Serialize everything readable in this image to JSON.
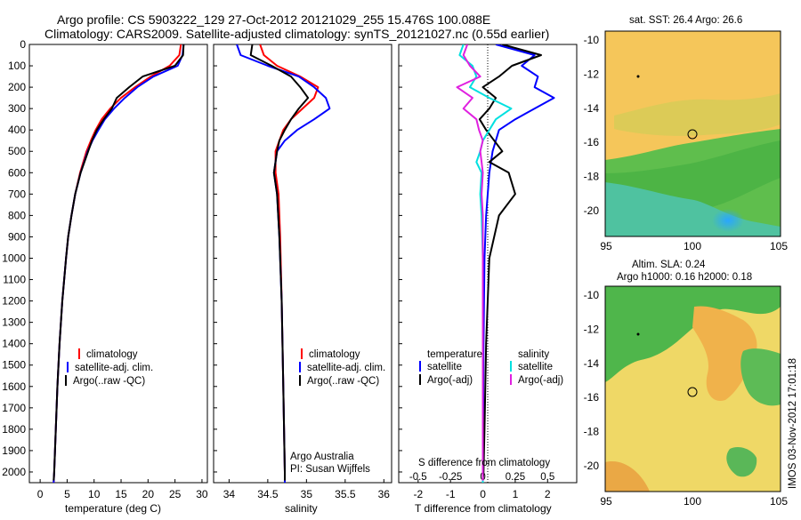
{
  "header": {
    "line1": "Argo profile: CS 5903222_129 27-Oct-2012 20121029_255 15.476S 100.088E",
    "line2": "Climatology: CARS2009. Satellite-adjusted climatology: synTS_20121027.nc (0.55d earlier)"
  },
  "colors": {
    "climatology": "#ff0000",
    "satellite": "#0000ff",
    "argo": "#000000",
    "argo_salinity_diff": "#e020e0",
    "satellite_salinity_diff": "#00e0e0"
  },
  "depth_ticks": [
    0,
    100,
    200,
    300,
    400,
    500,
    600,
    700,
    800,
    900,
    1000,
    1100,
    1200,
    1300,
    1400,
    1500,
    1600,
    1700,
    1800,
    1900,
    2000
  ],
  "legend_panel": {
    "climatology": "climatology",
    "satellite": "satellite-adj. clim.",
    "argo": "Argo(..raw -QC)"
  },
  "diff_legend": {
    "temperature_heading": "temperature",
    "temperature_satellite": "satellite",
    "temperature_argo": "Argo(-adj)",
    "salinity_heading": "salinity",
    "salinity_satellite": "satellite",
    "salinity_argo": "Argo(-adj)"
  },
  "credit": {
    "line1": "Argo Australia",
    "line2": "PI: Susan Wijffels"
  },
  "maps": {
    "sst_title": "sat. SST: 26.4  Argo: 26.6",
    "sla_title1": "Altim. SLA: 0.24",
    "sla_title2": "Argo h1000: 0.16 h2000: 0.18",
    "x_ticks": [
      "95",
      "100",
      "105"
    ],
    "y_ticks": [
      "-10",
      "-12",
      "-14",
      "-16",
      "-18",
      "-20"
    ]
  },
  "watermark": "IMOS 03-Nov-2012 17:01:18",
  "chart_data": [
    {
      "type": "line",
      "title": "",
      "xlabel": "temperature (deg C)",
      "ylabel": "",
      "xlim": [
        -2,
        31
      ],
      "ylim": [
        2050,
        0
      ],
      "x_ticks": [
        0,
        5,
        10,
        15,
        20,
        25,
        30
      ],
      "series": [
        {
          "name": "climatology",
          "color": "#ff0000",
          "depth": [
            0,
            50,
            100,
            150,
            200,
            250,
            300,
            350,
            400,
            450,
            500,
            600,
            700,
            800,
            900,
            1000,
            1200,
            1400,
            1600,
            1800,
            2000,
            2050
          ],
          "values": [
            26.1,
            25.8,
            24.0,
            20.5,
            17.6,
            15.0,
            13.0,
            11.4,
            10.3,
            9.4,
            8.6,
            7.4,
            6.5,
            5.8,
            5.2,
            4.8,
            4.1,
            3.6,
            3.2,
            2.9,
            2.6,
            2.5
          ]
        },
        {
          "name": "satellite-adj. clim.",
          "color": "#0000ff",
          "depth": [
            0,
            50,
            100,
            150,
            200,
            250,
            300,
            350,
            400,
            450,
            500,
            600,
            700,
            800,
            900,
            1000,
            1200,
            1400,
            1600,
            1800,
            2000,
            2050
          ],
          "values": [
            26.6,
            26.4,
            25.5,
            21.0,
            18.0,
            15.7,
            13.7,
            12.0,
            10.8,
            9.7,
            8.8,
            7.5,
            6.5,
            5.8,
            5.2,
            4.8,
            4.1,
            3.6,
            3.2,
            2.9,
            2.6,
            2.5
          ]
        },
        {
          "name": "Argo(..raw -QC)",
          "color": "#000000",
          "depth": [
            0,
            50,
            100,
            150,
            200,
            250,
            300,
            350,
            400,
            450,
            500,
            600,
            700,
            800,
            900,
            1000,
            1200,
            1400,
            1600,
            1800,
            2000,
            2040
          ],
          "values": [
            26.6,
            26.5,
            25.0,
            19.0,
            16.5,
            14.2,
            13.3,
            11.8,
            10.5,
            9.6,
            8.9,
            7.5,
            6.5,
            5.8,
            5.2,
            4.8,
            4.1,
            3.6,
            3.2,
            2.9,
            2.6,
            2.5
          ]
        }
      ]
    },
    {
      "type": "line",
      "xlabel": "salinity",
      "xlim": [
        33.8,
        36.1
      ],
      "ylim": [
        2050,
        0
      ],
      "x_ticks": [
        34,
        34.5,
        35,
        35.5,
        36
      ],
      "series": [
        {
          "name": "climatology",
          "color": "#ff0000",
          "depth": [
            0,
            50,
            100,
            150,
            200,
            250,
            300,
            350,
            400,
            450,
            500,
            600,
            700,
            900,
            1200,
            1600,
            2000,
            2050
          ],
          "values": [
            34.4,
            34.45,
            34.62,
            34.92,
            35.15,
            35.1,
            34.95,
            34.8,
            34.7,
            34.65,
            34.6,
            34.6,
            34.64,
            34.66,
            34.68,
            34.7,
            34.72,
            34.72
          ]
        },
        {
          "name": "satellite-adj. clim.",
          "color": "#0000ff",
          "depth": [
            0,
            50,
            100,
            150,
            200,
            250,
            300,
            350,
            400,
            450,
            500,
            600,
            700,
            900,
            1200,
            1600,
            2000,
            2050
          ],
          "values": [
            34.1,
            34.15,
            34.5,
            34.9,
            35.1,
            35.25,
            35.3,
            35.1,
            34.88,
            34.72,
            34.62,
            34.58,
            34.62,
            34.65,
            34.68,
            34.7,
            34.72,
            34.72
          ]
        },
        {
          "name": "Argo(..raw -QC)",
          "color": "#000000",
          "depth": [
            0,
            50,
            100,
            150,
            200,
            250,
            300,
            350,
            400,
            450,
            500,
            600,
            700,
            900,
            1200,
            1600,
            2000,
            2040
          ],
          "values": [
            34.3,
            34.28,
            34.55,
            34.8,
            34.92,
            35.02,
            34.9,
            34.8,
            34.72,
            34.65,
            34.62,
            34.58,
            34.62,
            34.65,
            34.68,
            34.7,
            34.72,
            34.72
          ]
        }
      ]
    },
    {
      "type": "line",
      "xlabel": "T difference from climatology",
      "x2label": "S difference from climatology",
      "xlim": [
        -2.6,
        2.9
      ],
      "x2lim": [
        -0.65,
        0.725
      ],
      "ylim": [
        2050,
        0
      ],
      "x_ticks": [
        -2,
        -1,
        0,
        1,
        2
      ],
      "x2_ticks": [
        "-0.5",
        "-0.25",
        "0",
        "0.25",
        "0.5"
      ],
      "series": [
        {
          "name": "temperature satellite",
          "color": "#0000ff",
          "depth": [
            0,
            50,
            100,
            150,
            200,
            250,
            300,
            350,
            400,
            500,
            600,
            800,
            1000,
            1400,
            1800,
            2000,
            2050
          ],
          "values": [
            0.4,
            1.6,
            1.2,
            1.7,
            1.6,
            2.2,
            1.6,
            1.0,
            0.5,
            0.3,
            0.2,
            0.1,
            0.05,
            0.02,
            0.01,
            0.0,
            0.0
          ]
        },
        {
          "name": "temperature Argo(-adj)",
          "color": "#000000",
          "depth": [
            0,
            50,
            100,
            150,
            200,
            250,
            300,
            350,
            400,
            500,
            550,
            600,
            700,
            800,
            1000,
            1400,
            1800,
            2000,
            2040
          ],
          "values": [
            0.6,
            1.8,
            0.9,
            0.5,
            0.0,
            0.4,
            0.2,
            -0.1,
            0.1,
            0.6,
            0.2,
            0.8,
            1.0,
            0.5,
            0.2,
            0.1,
            0.05,
            0.02,
            0.0
          ]
        },
        {
          "name": "salinity satellite",
          "color": "#00e0e0",
          "depth": [
            0,
            50,
            100,
            150,
            200,
            250,
            300,
            350,
            400,
            450,
            500,
            550,
            600,
            700,
            800,
            1000,
            1400,
            1800,
            2000,
            2050
          ],
          "values": [
            -0.15,
            -0.18,
            -0.08,
            -0.05,
            -0.1,
            0.05,
            0.22,
            0.1,
            0.05,
            0.0,
            -0.02,
            -0.05,
            -0.01,
            -0.02,
            -0.01,
            0.0,
            0.0,
            0.0,
            0.0,
            0.0
          ]
        },
        {
          "name": "salinity Argo(-adj)",
          "color": "#e020e0",
          "depth": [
            0,
            50,
            100,
            150,
            200,
            250,
            300,
            350,
            400,
            450,
            500,
            550,
            600,
            700,
            800,
            1000,
            1400,
            1800,
            2000,
            2040
          ],
          "values": [
            -0.12,
            -0.15,
            -0.1,
            -0.02,
            -0.2,
            -0.08,
            -0.15,
            -0.05,
            -0.03,
            0.0,
            -0.02,
            -0.01,
            0.0,
            -0.01,
            0.0,
            0.0,
            0.0,
            0.0,
            0.0,
            0.0
          ]
        }
      ]
    }
  ]
}
